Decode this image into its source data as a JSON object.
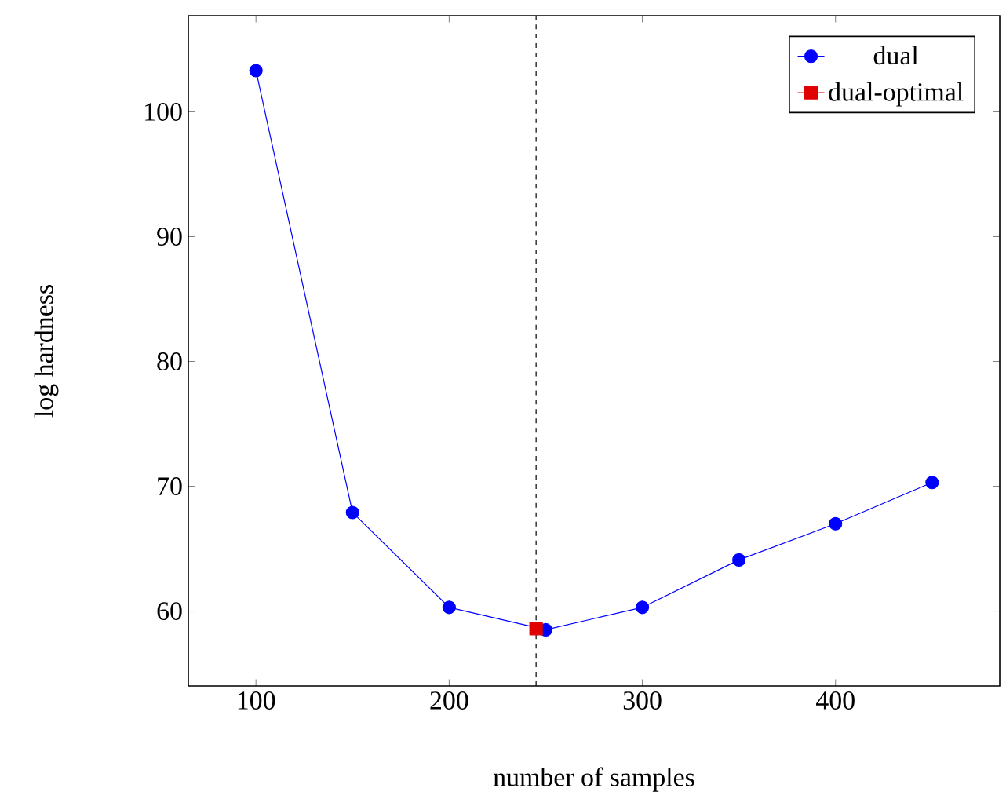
{
  "chart_data": {
    "type": "line",
    "xlabel": "number of samples",
    "ylabel": "log hardness",
    "xlim": [
      65,
      485
    ],
    "ylim": [
      54,
      107.7
    ],
    "xticks": [
      100,
      200,
      300,
      400
    ],
    "yticks": [
      60,
      70,
      80,
      90,
      100
    ],
    "legend": "top right",
    "grid": false,
    "series": [
      {
        "name": "dual",
        "color": "#0000ff",
        "marker": "circle",
        "x": [
          100,
          150,
          200,
          250,
          300,
          350,
          400,
          450
        ],
        "values": [
          103.3,
          67.9,
          60.3,
          58.5,
          60.3,
          64.1,
          67.0,
          70.3
        ]
      },
      {
        "name": "dual-optimal",
        "color": "#e00000",
        "marker": "square",
        "x": [
          245
        ],
        "values": [
          58.6
        ]
      }
    ],
    "ref_lines": [
      {
        "axis": "x",
        "value": 245,
        "color": "#000000",
        "line_style": "dashed"
      }
    ]
  }
}
